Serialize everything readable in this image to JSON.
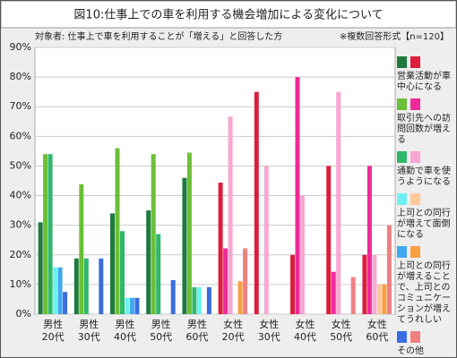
{
  "chart_data": {
    "type": "bar",
    "title": "図10:仕事上での車を利用する機会増加による変化について",
    "subtitle": "対象者: 仕事上で車を利用することが「増える」と回答した方",
    "note": "※複数回答形式【n=120】",
    "categories": [
      [
        "男性",
        "20代"
      ],
      [
        "男性",
        "30代"
      ],
      [
        "男性",
        "40代"
      ],
      [
        "男性",
        "50代"
      ],
      [
        "男性",
        "60代"
      ],
      [
        "女性",
        "20代"
      ],
      [
        "女性",
        "30代"
      ],
      [
        "女性",
        "40代"
      ],
      [
        "女性",
        "50代"
      ],
      [
        "女性",
        "60代"
      ]
    ],
    "series": [
      {
        "name": "営業活動が車中心になる",
        "colors": [
          "#1e7b3c",
          "#1e7b3c",
          "#1e7b3c",
          "#1e7b3c",
          "#1e7b3c",
          "#dc1e3c",
          "#dc1e3c",
          "#dc1e3c",
          "#dc1e3c",
          "#dc1e3c"
        ],
        "values": [
          31,
          18.8,
          34,
          35,
          46,
          44.4,
          75,
          20,
          50,
          20
        ]
      },
      {
        "name": "取引先への訪問回数が増える",
        "colors": [
          "#6cbf38",
          "#6cbf38",
          "#6cbf38",
          "#6cbf38",
          "#6cbf38",
          "#ee2a98",
          "#ee2a98",
          "#ee2a98",
          "#ee2a98",
          "#ee2a98"
        ],
        "values": [
          54,
          43.8,
          56,
          54,
          54.5,
          22.2,
          0,
          80,
          14.3,
          50
        ]
      },
      {
        "name": "通勤で車を使うようになる",
        "colors": [
          "#2eb86a",
          "#2eb86a",
          "#2eb86a",
          "#2eb86a",
          "#2eb86a",
          "#f8a8d2",
          "#f8a8d2",
          "#f8a8d2",
          "#f8a8d2",
          "#f8a8d2"
        ],
        "values": [
          54,
          18.8,
          28,
          27,
          9.1,
          66.7,
          50,
          40,
          75,
          20
        ]
      },
      {
        "name": "上司との同行が増えて面倒になる",
        "colors": [
          "#6ef0f0",
          "#6ef0f0",
          "#6ef0f0",
          "#6ef0f0",
          "#6ef0f0",
          "#ffc89a",
          "#ffc89a",
          "#ffc89a",
          "#ffc89a",
          "#ffc89a"
        ],
        "values": [
          15.8,
          0,
          5.5,
          0,
          9.1,
          0,
          0,
          0,
          0,
          10
        ]
      },
      {
        "name": "上司との同行が増えることで、上司とのコミュニケーションが増えてうれしい",
        "colors": [
          "#40a8f0",
          "#40a8f0",
          "#40a8f0",
          "#40a8f0",
          "#40a8f0",
          "#f8a040",
          "#f8a040",
          "#f8a040",
          "#f8a040",
          "#f8a040"
        ],
        "values": [
          15.8,
          0,
          5.5,
          0,
          0,
          11.1,
          0,
          0,
          0,
          10
        ]
      },
      {
        "name": "その他",
        "colors": [
          "#3a6ee0",
          "#3a6ee0",
          "#3a6ee0",
          "#3a6ee0",
          "#3a6ee0",
          "#f08080",
          "#f08080",
          "#f08080",
          "#f08080",
          "#f08080"
        ],
        "values": [
          7.5,
          18.8,
          5.5,
          11.5,
          9.1,
          22.2,
          0,
          0,
          12.5,
          30
        ]
      }
    ],
    "ylim": [
      0,
      90
    ],
    "yticks": [
      {
        "value": 0,
        "label": "0%"
      },
      {
        "value": 10,
        "label": "10%"
      },
      {
        "value": 20,
        "label": "20%"
      },
      {
        "value": 30,
        "label": "30%"
      },
      {
        "value": 40,
        "label": "40%"
      },
      {
        "value": 50,
        "label": "50%"
      },
      {
        "value": 60,
        "label": "60%"
      },
      {
        "value": 70,
        "label": "70%"
      },
      {
        "value": 80,
        "label": "80%"
      },
      {
        "value": 90,
        "label": "90%"
      }
    ],
    "grid": true
  }
}
